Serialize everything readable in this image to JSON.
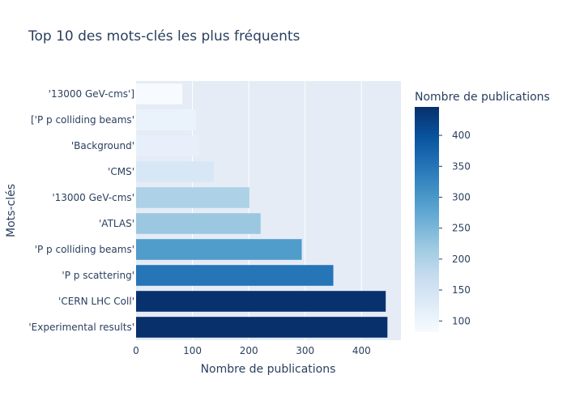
{
  "chart_data": {
    "type": "bar",
    "orientation": "horizontal",
    "title": "Top 10 des mots-clés les plus fréquents",
    "xlabel": "Nombre de publications",
    "ylabel": "Mots-clés",
    "xlim": [
      0,
      470
    ],
    "x_ticks": [
      0,
      100,
      200,
      300,
      400
    ],
    "x_tick_labels": [
      "0",
      "100",
      "200",
      "300",
      "400"
    ],
    "categories": [
      "'Experimental results'",
      "'CERN LHC Coll'",
      "'P p scattering'",
      "'P p colliding beams'",
      "'ATLAS'",
      "'13000 GeV-cms'",
      "'CMS'",
      "'Background'",
      "['P p colliding beams'",
      "'13000 GeV-cms']"
    ],
    "values": [
      446,
      443,
      350,
      294,
      221,
      201,
      138,
      112,
      106,
      82
    ],
    "grid": true,
    "colorscale": "Blues",
    "colorbar": {
      "title": "Nombre de publications",
      "range": [
        82,
        446
      ],
      "ticks": [
        100,
        150,
        200,
        250,
        300,
        350,
        400
      ],
      "tick_labels": [
        "100",
        "150",
        "200",
        "250",
        "300",
        "350",
        "400"
      ]
    }
  },
  "colors": {
    "plot_bg": "#e5ecf6",
    "grid": "#ffffff",
    "text": "#2a3f5f"
  }
}
